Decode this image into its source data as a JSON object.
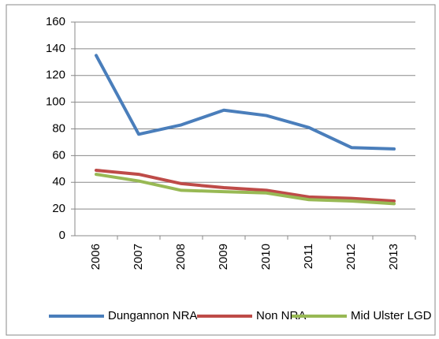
{
  "chart_data": {
    "type": "line",
    "categories": [
      "2006",
      "2007",
      "2008",
      "2009",
      "2010",
      "2011",
      "2012",
      "2013"
    ],
    "series": [
      {
        "name": "Dungannon NRA",
        "color": "#4a7ebb",
        "values": [
          135,
          76,
          83,
          94,
          90,
          81,
          66,
          65
        ]
      },
      {
        "name": "Non NRA",
        "color": "#be4b48",
        "values": [
          49,
          46,
          39,
          36,
          34,
          29,
          28,
          26
        ]
      },
      {
        "name": "Mid Ulster LGD",
        "color": "#98b954",
        "values": [
          46,
          41,
          34,
          33,
          32,
          27,
          26,
          24
        ]
      }
    ],
    "ylim": [
      0,
      160
    ],
    "yticks": [
      0,
      20,
      40,
      60,
      80,
      100,
      120,
      140,
      160
    ],
    "grid": true,
    "legend": "bottom"
  }
}
